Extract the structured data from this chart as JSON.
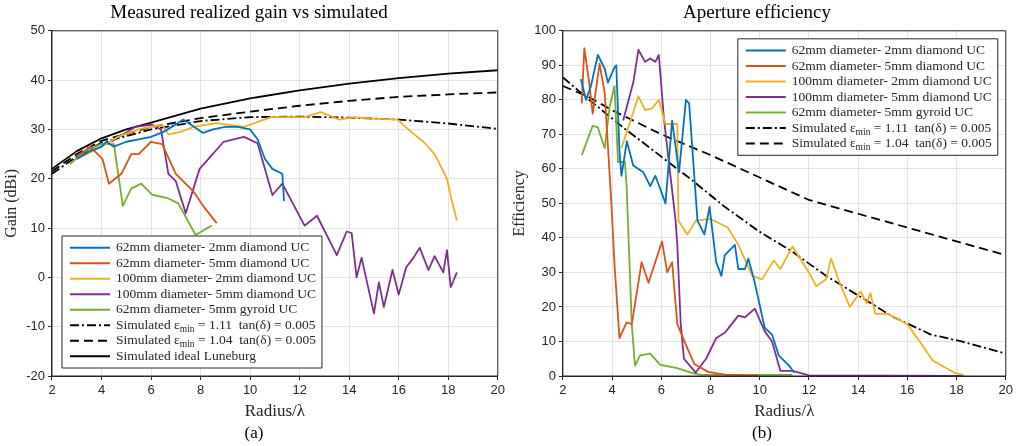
{
  "chart_data": [
    {
      "type": "line",
      "title": "Measured realized gain vs simulated",
      "xlabel": "Radius/λ",
      "ylabel": "Gain (dBi)",
      "xlim": [
        2,
        20
      ],
      "ylim": [
        -20,
        50
      ],
      "xticks": [
        2,
        4,
        6,
        8,
        10,
        12,
        14,
        16,
        18,
        20
      ],
      "yticks": [
        -20,
        -10,
        0,
        10,
        20,
        30,
        40,
        50
      ],
      "grid": true,
      "legend": "bottom left",
      "annotations": [
        "(a)"
      ],
      "series": [
        {
          "name": "62mm diameter- 2mm diamond UC",
          "color": "#0072bd",
          "x": [
            3,
            3.5,
            4,
            4.2,
            4.5,
            5,
            5.5,
            6,
            6.5,
            7,
            7.3,
            7.6,
            8.1,
            8.5,
            9,
            9.5,
            10,
            10.3,
            10.6,
            10.9,
            11.1,
            11.3,
            11.37
          ],
          "values": [
            24,
            25.5,
            26.5,
            27.5,
            26.5,
            27.5,
            28,
            28.5,
            29.5,
            31,
            32,
            31,
            29.3,
            30,
            30.5,
            30.5,
            30,
            28,
            24,
            22,
            21.5,
            21,
            15.5
          ]
        },
        {
          "name": "62mm diameter- 5mm diamond UC",
          "color": "#d95319",
          "x": [
            3,
            3.55,
            4.04,
            4.3,
            4.8,
            5.2,
            5.5,
            6,
            6.45,
            7,
            7.7,
            8.1,
            8.65
          ],
          "values": [
            24.5,
            26.5,
            24,
            19,
            21,
            25,
            25,
            27.5,
            27,
            21,
            17.5,
            14.5,
            11
          ]
        },
        {
          "name": "100mm diameter- 2mm diamond UC",
          "color": "#edb120",
          "x": [
            3,
            4,
            4.66,
            5.5,
            6.45,
            6.7,
            7.2,
            7.7,
            8.65,
            9.75,
            10.85,
            11.4,
            12.2,
            12.85,
            13.6,
            14.2,
            15,
            15.95,
            16.5,
            17,
            17.45,
            17.95,
            18.1,
            18.35
          ],
          "values": [
            24,
            26.5,
            28.5,
            30,
            31,
            29,
            29.5,
            30.5,
            31.3,
            30.5,
            32.5,
            32.5,
            32.5,
            33.5,
            32,
            32.5,
            32.2,
            32,
            29.5,
            27.5,
            25,
            20,
            16.5,
            11.5
          ]
        },
        {
          "name": "100mm diameter- 5mm diamond UC",
          "color": "#7e2f8e",
          "x": [
            4.4,
            5.35,
            6.04,
            6.4,
            6.7,
            7,
            7.4,
            7.96,
            8.93,
            9.75,
            10.3,
            10.9,
            11.3,
            12.2,
            12.7,
            13.5,
            13.9,
            14.1,
            14.3,
            14.5,
            15,
            15.2,
            15.4,
            15.75,
            16,
            16.3,
            16.6,
            16.85,
            17.2,
            17.45,
            17.8,
            17.95,
            18.1,
            18.35
          ],
          "values": [
            27.5,
            30.5,
            31,
            30,
            21,
            19.5,
            13,
            22,
            27.5,
            28.5,
            27.2,
            16.7,
            19,
            10.5,
            12.5,
            4.5,
            9.3,
            9,
            0,
            4,
            -7.3,
            -1,
            -6,
            1.5,
            -3.5,
            2,
            4,
            6,
            1.5,
            4.3,
            1,
            5.5,
            -2,
            1
          ]
        },
        {
          "name": "62mm diameter- 5mm gyroid UC",
          "color": "#77ac30",
          "x": [
            2.73,
            3.3,
            3.97,
            4.5,
            4.86,
            5.2,
            5.6,
            6.04,
            6.7,
            7.1,
            7.8,
            8.45
          ],
          "values": [
            23,
            25.5,
            27,
            27,
            14.5,
            18,
            19,
            16.8,
            16,
            15,
            8.6,
            10.5
          ]
        },
        {
          "name": "Simulated ε$_{min}$ = 1.11  tan(δ) = 0.005",
          "color": "#000000",
          "line_style": "dashdot",
          "x": [
            2,
            3,
            4,
            6,
            8,
            10,
            12,
            14,
            16,
            18,
            20
          ],
          "values": [
            21,
            24.5,
            27.3,
            30,
            31.7,
            32.5,
            32.6,
            32.4,
            32,
            31.2,
            30.1
          ]
        },
        {
          "name": "Simulated ε$_{min}$ = 1.04  tan(δ) = 0.005",
          "color": "#000000",
          "line_style": "dashed",
          "x": [
            2,
            3,
            4,
            6,
            8,
            10,
            12,
            14,
            16,
            18,
            20
          ],
          "values": [
            21.5,
            25,
            27.7,
            30.5,
            32.3,
            33.6,
            34.8,
            35.8,
            36.6,
            37.1,
            37.5
          ]
        },
        {
          "name": "Simulated ideal Luneburg",
          "color": "#000000",
          "line_style": "solid",
          "x": [
            2,
            3,
            4,
            5,
            6,
            8,
            10,
            12,
            14,
            16,
            18,
            20
          ],
          "values": [
            22,
            25.6,
            28.2,
            30,
            31.4,
            34.2,
            36.3,
            37.9,
            39.3,
            40.4,
            41.3,
            42
          ]
        }
      ]
    },
    {
      "type": "line",
      "title": "Aperture efficiency",
      "xlabel": "Radius/λ",
      "ylabel": "Efficiency",
      "xlim": [
        2,
        20
      ],
      "ylim": [
        0,
        100
      ],
      "xticks": [
        2,
        4,
        6,
        8,
        10,
        12,
        14,
        16,
        18,
        20
      ],
      "yticks": [
        0,
        10,
        20,
        30,
        40,
        50,
        60,
        70,
        80,
        90,
        100
      ],
      "grid": true,
      "legend": "top right",
      "annotations": [
        "(b)"
      ],
      "series": [
        {
          "name": "62mm diameter- 2mm diamond UC",
          "color": "#0072bd",
          "x": [
            2.73,
            2.94,
            3.14,
            3.42,
            3.7,
            3.83,
            4.1,
            4.17,
            4.3,
            4.38,
            4.6,
            4.86,
            5.27,
            5.55,
            5.76,
            6.17,
            6.44,
            6.72,
            7,
            7.13,
            7.47,
            7.75,
            7.96,
            8.23,
            8.44,
            8.58,
            8.99,
            9.13,
            9.4,
            9.54,
            9.8,
            10.2,
            10.5,
            10.77,
            11.19,
            11.4
          ],
          "values": [
            86,
            80,
            84,
            93,
            89,
            85,
            89.5,
            90,
            65,
            58,
            68,
            61,
            59,
            55,
            58,
            50,
            74,
            59,
            80,
            79,
            45,
            41,
            49,
            33,
            29,
            35,
            38,
            31,
            31,
            34,
            27,
            14,
            12,
            6,
            3,
            1
          ]
        },
        {
          "name": "62mm diameter- 5mm diamond UC",
          "color": "#d95319",
          "x": [
            2.77,
            2.87,
            3.07,
            3.21,
            3.49,
            3.7,
            3.97,
            4.1,
            4.3,
            4.59,
            4.8,
            5.2,
            5.48,
            6.03,
            6.24,
            6.44,
            6.65,
            7.06,
            7.34,
            7.9,
            8.58,
            9.95
          ],
          "values": [
            79,
            95,
            85,
            76,
            90.5,
            82,
            50,
            32,
            11,
            15.5,
            15,
            33,
            27,
            39,
            30,
            33,
            15,
            8,
            3.5,
            1.2,
            0.4,
            0.1
          ]
        },
        {
          "name": "100mm diameter- 2mm diamond UC",
          "color": "#edb120",
          "x": [
            4.38,
            5.07,
            5.34,
            5.62,
            5.9,
            6.17,
            6.65,
            6.7,
            7.06,
            7.4,
            8,
            8.7,
            9.13,
            9.7,
            10.1,
            10.57,
            10.84,
            11.33,
            12,
            12.3,
            12.7,
            12.9,
            13.25,
            13.66,
            14.1,
            14.35,
            14.5,
            14.7,
            15.2,
            16,
            16.7,
            17.03,
            17.9,
            18.27
          ],
          "values": [
            66,
            81,
            77,
            77.5,
            80,
            73,
            73,
            45,
            41,
            45,
            45.5,
            43,
            38,
            29,
            28,
            33.5,
            31,
            37.5,
            30,
            26,
            28,
            34,
            27,
            20,
            24.5,
            21,
            24,
            18,
            18,
            15,
            8,
            4.5,
            1,
            0.3
          ]
        },
        {
          "name": "100mm diameter- 5mm diamond UC",
          "color": "#7e2f8e",
          "x": [
            4.45,
            4.86,
            5.07,
            5.34,
            5.55,
            5.76,
            5.9,
            6.1,
            6.58,
            6.65,
            6.79,
            6.92,
            7.4,
            7.82,
            8.23,
            8.58,
            9.13,
            9.4,
            9.8,
            10.2,
            10.5,
            10.84,
            11.33,
            12,
            18.3
          ],
          "values": [
            74,
            85,
            94.5,
            91,
            92,
            91,
            93,
            75,
            45,
            38,
            15,
            5,
            1,
            5,
            11,
            12.5,
            17.5,
            17,
            19.5,
            13,
            10,
            1.5,
            1.5,
            0.2,
            0
          ]
        },
        {
          "name": "62mm diameter- 5mm gyroid UC",
          "color": "#77ac30",
          "x": [
            2.77,
            3.21,
            3.42,
            3.7,
            3.9,
            4.1,
            4.24,
            4.52,
            4.59,
            4.8,
            4.93,
            5.14,
            5.55,
            5.96,
            6.65,
            7.2,
            7.6,
            11.33
          ],
          "values": [
            64,
            72.5,
            72,
            66,
            78,
            84,
            62,
            62,
            55,
            15,
            3,
            6,
            6.5,
            3.2,
            2.3,
            1,
            0.3,
            0.3
          ]
        },
        {
          "name": "Simulated ε$_{min}$ = 1.11  tan(δ) = 0.005",
          "color": "#000000",
          "line_style": "dashdot",
          "x": [
            2,
            3.07,
            4.45,
            7.2,
            8.58,
            9.95,
            11.33,
            12.7,
            14.08,
            15.45,
            16.96,
            18.2,
            20
          ],
          "values": [
            86.5,
            80,
            72,
            57,
            49,
            42,
            36,
            29,
            23,
            17,
            12,
            10,
            6.5
          ]
        },
        {
          "name": "Simulated ε$_{min}$ = 1.04  tan(δ) = 0.005",
          "color": "#000000",
          "line_style": "dashed",
          "x": [
            2,
            3,
            4,
            6,
            8,
            10,
            12,
            14,
            16,
            18,
            20
          ],
          "values": [
            84,
            81,
            77,
            70,
            64,
            57.5,
            51,
            47,
            43,
            39,
            35
          ]
        }
      ]
    }
  ]
}
